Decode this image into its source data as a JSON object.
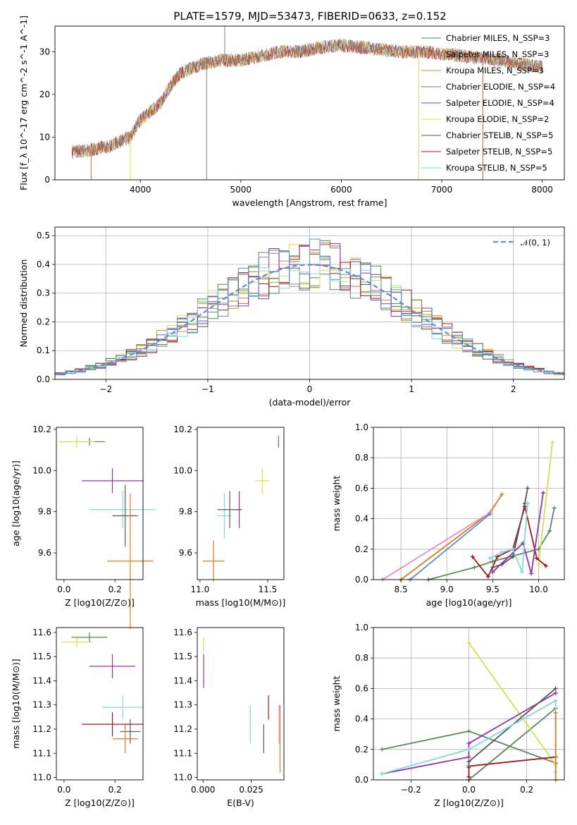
{
  "figure": {
    "title": "PLATE=1579, MJD=53473, FIBERID=0633, z=0.152"
  },
  "colors": {
    "chabrier_miles": "#4a8c4a",
    "salpeter_miles": "#e8643c",
    "kroupa_miles": "#e08a1a",
    "chabrier_elodie": "#5a8a5a",
    "salpeter_elodie": "#9a30b0",
    "kroupa_elodie": "#d4e04a",
    "chabrier_stelib": "#555555",
    "salpeter_stelib": "#a01818",
    "kroupa_stelib": "#80d8dc",
    "normal_curve": "#5b8dd9",
    "extra_blue": "#5b8dd9",
    "extra_pink": "#e090c0",
    "extra_orange": "#e07820",
    "data_spectrum": "#808080"
  },
  "chart_data": [
    {
      "type": "line",
      "title": "PLATE=1579, MJD=53473, FIBERID=0633, z=0.152",
      "xlabel": "wavelength [Angstrom, rest frame]",
      "ylabel": "Flux [f_λ 10^-17 erg cm^-2 s^-1 A^-1]",
      "xlim": [
        3150,
        8220
      ],
      "ylim": [
        0,
        36
      ],
      "xticks": [
        "4000",
        "5000",
        "6000",
        "7000",
        "8000"
      ],
      "yticks": [
        "0",
        "10",
        "20",
        "30"
      ],
      "legend_position": "top-right",
      "series": [
        {
          "name": "Chabrier MILES, N_SSP=3"
        },
        {
          "name": "Salpeter MILES, N_SSP=3"
        },
        {
          "name": "Kroupa MILES, N_SSP=3"
        },
        {
          "name": "Chabrier ELODIE, N_SSP=4"
        },
        {
          "name": "Salpeter ELODIE, N_SSP=4"
        },
        {
          "name": "Kroupa ELODIE, N_SSP=2"
        },
        {
          "name": "Chabrier STELIB, N_SSP=5"
        },
        {
          "name": "Salpeter STELIB, N_SSP=5"
        },
        {
          "name": "Kroupa STELIB, N_SSP=5"
        }
      ],
      "continuum": {
        "x": [
          3300,
          3500,
          3700,
          3900,
          4000,
          4100,
          4200,
          4300,
          4400,
          4600,
          4800,
          5000,
          5200,
          5400,
          5600,
          5800,
          6000,
          6200,
          6400,
          6600,
          6800,
          7000,
          7200,
          7400,
          7600,
          7800,
          8000
        ],
        "y": [
          6.5,
          7,
          8,
          10,
          14,
          16,
          18,
          22,
          25,
          27,
          28,
          28,
          29,
          30,
          30,
          31,
          31.5,
          31,
          30.5,
          30,
          30,
          29.5,
          29,
          28.5,
          28,
          27,
          26.5
        ]
      }
    },
    {
      "type": "line",
      "xlabel": "(data-model)/error",
      "ylabel": "Normed distribution",
      "xlim": [
        -2.5,
        2.5
      ],
      "ylim": [
        0,
        0.53
      ],
      "xticks": [
        "−2",
        "−1",
        "0",
        "1",
        "2"
      ],
      "yticks": [
        "0.0",
        "0.1",
        "0.2",
        "0.3",
        "0.4",
        "0.5"
      ],
      "legend": "N(0, 1)",
      "legend_text": "𝒩(0, 1)",
      "legend_position": "top-right",
      "grid": true
    },
    {
      "type": "scatter",
      "xlabel": "Z [log10(Z/Z⊙)]",
      "ylabel": "age [log10(age/yr)]",
      "xlim": [
        -0.03,
        0.31
      ],
      "ylim": [
        9.47,
        10.21
      ],
      "xticks": [
        "0.0",
        "0.2"
      ],
      "yticks": [
        "9.6",
        "9.8",
        "10.0",
        "10.2"
      ],
      "points": [
        {
          "x": 0.1,
          "y": 10.14,
          "xerr": 0.06,
          "yerr": 0.02
        },
        {
          "x": 0.05,
          "y": 10.14,
          "xerr": 0.07,
          "yerr": 0.03
        },
        {
          "x": 0.19,
          "y": 9.95,
          "xerr": 0.12,
          "yerr": 0.06
        },
        {
          "x": 0.23,
          "y": 9.81,
          "xerr": 0.13,
          "yerr": 0.09
        },
        {
          "x": 0.24,
          "y": 9.78,
          "xerr": 0.05,
          "yerr": 0.15
        },
        {
          "x": 0.26,
          "y": 9.56,
          "xerr": 0.09,
          "yerr": 0.33
        }
      ]
    },
    {
      "type": "scatter",
      "xlabel": "mass [log10(M/M⊙)]",
      "xlim": [
        10.98,
        11.62
      ],
      "ylim": [
        9.47,
        10.21
      ],
      "xticks": [
        "11.0",
        "11.5"
      ],
      "yticks": [
        "9.6",
        "9.8",
        "10.0",
        "10.2"
      ],
      "points": [
        {
          "x": 11.58,
          "y": 10.14,
          "yerr": 0.03
        },
        {
          "x": 11.46,
          "y": 9.95,
          "xerr": 0.05,
          "yerr": 0.06
        },
        {
          "x": 11.29,
          "y": 9.81,
          "yerr": 0.09
        },
        {
          "x": 11.18,
          "y": 9.78,
          "xerr": 0.05,
          "yerr": 0.11
        },
        {
          "x": 11.22,
          "y": 9.81,
          "xerr": 0.09,
          "yerr": 0.09
        },
        {
          "x": 11.1,
          "y": 9.56,
          "xerr": 0.08,
          "yerr": 0.1
        }
      ]
    },
    {
      "type": "line",
      "xlabel": "age [log10(age/yr)]",
      "ylabel": "mass weight",
      "xlim": [
        8.2,
        10.28
      ],
      "ylim": [
        0,
        1.0
      ],
      "xticks": [
        "8.5",
        "9.0",
        "9.5",
        "10.0"
      ],
      "yticks": [
        "0.0",
        "0.2",
        "0.4",
        "0.6",
        "0.8",
        "1.0"
      ],
      "grid": true,
      "series": [
        {
          "color": "orange",
          "x": [
            8.5,
            9.47,
            9.6
          ],
          "y": [
            0.0,
            0.44,
            0.56
          ]
        },
        {
          "color": "pink",
          "x": [
            8.3,
            9.47
          ],
          "y": [
            0.0,
            0.44
          ]
        },
        {
          "color": "blue",
          "x": [
            8.6,
            9.47
          ],
          "y": [
            0.0,
            0.43
          ]
        },
        {
          "color": "green",
          "x": [
            8.8,
            9.3,
            9.5,
            10.0,
            10.12,
            10.17
          ],
          "y": [
            0.0,
            0.08,
            0.12,
            0.2,
            0.32,
            0.47
          ]
        },
        {
          "color": "kroupa_elodie",
          "x": [
            10.0,
            10.15
          ],
          "y": [
            0.1,
            0.9
          ]
        },
        {
          "color": "salpeter_stelib",
          "x": [
            9.28,
            9.45,
            9.55,
            9.72,
            9.85,
            9.98,
            10.08
          ],
          "y": [
            0.15,
            0.02,
            0.15,
            0.2,
            0.48,
            0.14,
            0.09
          ]
        },
        {
          "color": "chabrier_stelib",
          "x": [
            9.5,
            9.6,
            9.72,
            9.85,
            9.88
          ],
          "y": [
            0.08,
            0.1,
            0.15,
            0.5,
            0.6
          ]
        },
        {
          "color": "salpeter_elodie",
          "x": [
            9.5,
            9.83,
            9.92,
            10.05
          ],
          "y": [
            0.05,
            0.24,
            0.04,
            0.57
          ]
        },
        {
          "color": "kroupa_stelib",
          "x": [
            9.47,
            9.6,
            9.72,
            9.82,
            9.88
          ],
          "y": [
            0.14,
            0.18,
            0.2,
            0.05,
            0.5
          ]
        }
      ]
    },
    {
      "type": "scatter",
      "xlabel": "Z [log10(Z/Z⊙)]",
      "ylabel": "mass [log10(M/M⊙)]",
      "xlim": [
        -0.03,
        0.31
      ],
      "ylim": [
        10.99,
        11.62
      ],
      "xticks": [
        "0.0",
        "0.2"
      ],
      "yticks": [
        "11.0",
        "11.1",
        "11.2",
        "11.3",
        "11.4",
        "11.5",
        "11.6"
      ],
      "points": [
        {
          "x": 0.1,
          "y": 11.58,
          "xerr": 0.07,
          "yerr": 0.02
        },
        {
          "x": 0.05,
          "y": 11.56,
          "xerr": 0.06,
          "yerr": 0.02
        },
        {
          "x": 0.19,
          "y": 11.46,
          "xerr": 0.09,
          "yerr": 0.05
        },
        {
          "x": 0.23,
          "y": 11.29,
          "xerr": 0.08,
          "yerr": 0.05
        },
        {
          "x": 0.26,
          "y": 11.19,
          "xerr": 0.04,
          "yerr": 0.05
        },
        {
          "x": 0.24,
          "y": 11.16,
          "xerr": 0.05,
          "yerr": 0.06
        },
        {
          "x": 0.19,
          "y": 11.22,
          "xerr": 0.12,
          "yerr": 0.05
        }
      ]
    },
    {
      "type": "scatter",
      "xlabel": "E(B-V)",
      "xlim": [
        -0.003,
        0.042
      ],
      "ylim": [
        10.99,
        11.62
      ],
      "xticks": [
        "0.000",
        "0.025"
      ],
      "yticks": [
        "11.0",
        "11.1",
        "11.2",
        "11.3",
        "11.4",
        "11.5",
        "11.6"
      ]
    },
    {
      "type": "line",
      "xlabel": "Z [log10(Z/Z⊙)]",
      "ylabel": "mass weight",
      "xlim": [
        -0.33,
        0.33
      ],
      "ylim": [
        0,
        1.0
      ],
      "xticks": [
        "−0.2",
        "0.0",
        "0.2"
      ],
      "yticks": [
        "0.0",
        "0.2",
        "0.4",
        "0.6",
        "0.8",
        "1.0"
      ],
      "grid": true,
      "series": [
        {
          "color": "green",
          "x": [
            -0.3,
            0.0,
            0.3
          ],
          "y": [
            0.2,
            0.32,
            0.11
          ]
        },
        {
          "color": "green",
          "x": [
            0.0,
            0.3
          ],
          "y": [
            0.0,
            0.47
          ]
        },
        {
          "color": "kroupa_elodie",
          "x": [
            0.0,
            0.3
          ],
          "y": [
            0.9,
            0.1
          ]
        },
        {
          "color": "salpeter_stelib",
          "x": [
            0.0,
            0.0,
            0.3
          ],
          "y": [
            0.02,
            0.09,
            0.15
          ]
        },
        {
          "color": "salpeter_elodie",
          "x": [
            -0.3,
            0.0,
            0.0,
            0.3
          ],
          "y": [
            0.04,
            0.15,
            0.24,
            0.57
          ]
        },
        {
          "color": "chabrier_stelib",
          "x": [
            0.0,
            0.0,
            0.3
          ],
          "y": [
            0.08,
            0.12,
            0.6
          ]
        },
        {
          "color": "kroupa_stelib",
          "x": [
            -0.3,
            0.0,
            0.3,
            0.3
          ],
          "y": [
            0.04,
            0.2,
            0.52,
            0.05
          ]
        },
        {
          "color": "orange",
          "x": [
            0.3,
            0.3
          ],
          "y": [
            0.0,
            0.44
          ]
        }
      ]
    }
  ]
}
